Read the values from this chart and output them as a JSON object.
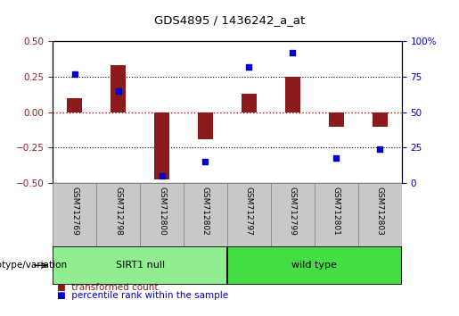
{
  "title": "GDS4895 / 1436242_a_at",
  "samples": [
    "GSM712769",
    "GSM712798",
    "GSM712800",
    "GSM712802",
    "GSM712797",
    "GSM712799",
    "GSM712801",
    "GSM712803"
  ],
  "transformed_count": [
    0.1,
    0.33,
    -0.47,
    -0.19,
    0.13,
    0.25,
    -0.1,
    -0.1
  ],
  "percentile_rank": [
    77,
    65,
    5,
    15,
    82,
    92,
    18,
    24
  ],
  "groups": [
    {
      "label": "SIRT1 null",
      "indices": [
        0,
        1,
        2,
        3
      ],
      "color": "#90EE90"
    },
    {
      "label": "wild type",
      "indices": [
        4,
        5,
        6,
        7
      ],
      "color": "#44DD44"
    }
  ],
  "group_label": "genotype/variation",
  "ylim_left": [
    -0.5,
    0.5
  ],
  "ylim_right": [
    0,
    100
  ],
  "yticks_left": [
    -0.5,
    -0.25,
    0,
    0.25,
    0.5
  ],
  "yticks_right": [
    0,
    25,
    50,
    75,
    100
  ],
  "bar_color": "#8B1A1A",
  "dot_color": "#0000CC",
  "hline_color": "#CC0000",
  "dotted_color": "black",
  "legend_bar_label": "transformed count",
  "legend_dot_label": "percentile rank within the sample",
  "bar_width": 0.35,
  "xtick_bg": "#C8C8C8",
  "xtick_border": "#888888",
  "group_border": "#000000"
}
